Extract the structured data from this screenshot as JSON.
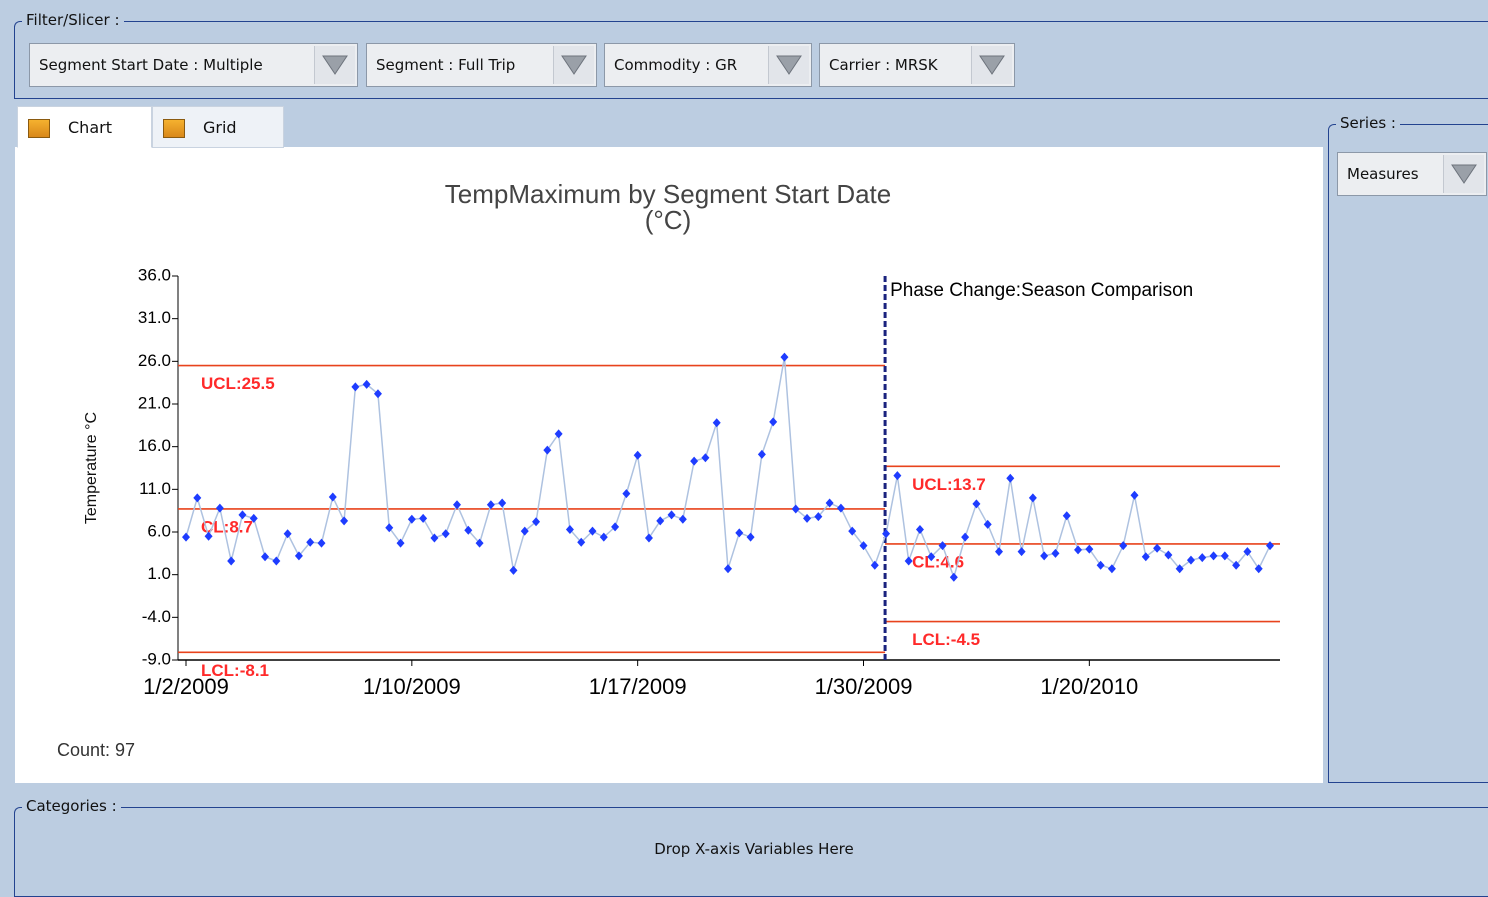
{
  "ui": {
    "filter_title": "Filter/Slicer :",
    "filters": [
      "Segment Start Date : Multiple",
      "Segment : Full Trip",
      "Commodity : GR",
      "Carrier : MRSK"
    ],
    "tabs": [
      "Chart",
      "Grid"
    ],
    "series_title": "Series :",
    "series_item": "Measures",
    "categories_title": "Categories :",
    "categories_hint": "Drop X-axis Variables Here"
  },
  "chart_data": {
    "type": "line",
    "title": "TempMaximum by Segment Start Date",
    "subtitle": "(°C)",
    "y_label": "Temperature °C",
    "categories": [
      "1/2/2009",
      null,
      null,
      null,
      null,
      null,
      null,
      null,
      null,
      null,
      null,
      null,
      null,
      null,
      null,
      null,
      null,
      null,
      null,
      null,
      "1/10/2009",
      null,
      null,
      null,
      null,
      null,
      null,
      null,
      null,
      null,
      null,
      null,
      null,
      null,
      null,
      null,
      null,
      null,
      null,
      null,
      "1/17/2009",
      null,
      null,
      null,
      null,
      null,
      null,
      null,
      null,
      null,
      null,
      null,
      null,
      null,
      null,
      null,
      null,
      null,
      null,
      null,
      "1/30/2009",
      null,
      null,
      null,
      null,
      null,
      null,
      null,
      null,
      null,
      null,
      null,
      null,
      null,
      null,
      null,
      null,
      null,
      null,
      null,
      "1/20/2010",
      null,
      null,
      null,
      null,
      null,
      null,
      null,
      null,
      null,
      null,
      null,
      null,
      null,
      null,
      null,
      null
    ],
    "values": [
      5.4,
      10.0,
      5.5,
      8.8,
      2.6,
      8.0,
      7.6,
      3.1,
      2.6,
      5.8,
      3.2,
      4.8,
      4.7,
      10.1,
      7.3,
      23.0,
      23.3,
      22.2,
      6.5,
      4.7,
      7.5,
      7.6,
      5.3,
      5.8,
      9.2,
      6.2,
      4.7,
      9.2,
      9.4,
      1.5,
      6.1,
      7.2,
      15.6,
      17.5,
      6.3,
      4.8,
      6.1,
      5.4,
      6.6,
      10.5,
      15.0,
      5.3,
      7.3,
      8.0,
      7.5,
      14.3,
      14.7,
      18.8,
      1.7,
      5.9,
      5.4,
      15.1,
      18.9,
      26.5,
      8.7,
      7.6,
      7.8,
      9.4,
      8.8,
      6.1,
      4.4,
      2.1,
      5.8,
      12.6,
      2.6,
      6.3,
      3.1,
      4.4,
      0.7,
      5.4,
      9.3,
      6.9,
      3.7,
      12.3,
      3.7,
      10.0,
      3.2,
      3.5,
      7.9,
      3.9,
      4.0,
      2.1,
      1.7,
      4.4,
      10.3,
      3.1,
      4.1,
      3.3,
      1.7,
      2.7,
      3.0,
      3.2,
      3.2,
      2.1,
      3.7,
      1.7,
      4.4
    ],
    "color": "#1e3cff",
    "line_color": "#aec2e0",
    "limit_color": "#e8431c",
    "limit_label_color": "#ff2a2a",
    "ylim": [
      -9,
      36
    ],
    "yticks": [
      {
        "value": 36,
        "label": "36.0"
      },
      {
        "value": 31,
        "label": "31.0"
      },
      {
        "value": 26,
        "label": "26.0"
      },
      {
        "value": 21,
        "label": "21.0"
      },
      {
        "value": 16,
        "label": "16.0"
      },
      {
        "value": 11,
        "label": "11.0"
      },
      {
        "value": 6,
        "label": "6.0"
      },
      {
        "value": 1,
        "label": "1.0"
      },
      {
        "value": -4,
        "label": "-4.0"
      },
      {
        "value": -9,
        "label": "-9.0"
      }
    ],
    "phases": [
      {
        "start": 0,
        "ucl": 25.5,
        "cl": 8.7,
        "lcl": -8.1,
        "ucl_label": "UCL:25.5",
        "cl_label": "CL:8.7",
        "lcl_label": "LCL:-8.1"
      },
      {
        "start": 62,
        "ucl": 13.7,
        "cl": 4.6,
        "lcl": -4.5,
        "ucl_label": "UCL:13.7",
        "cl_label": "CL:4.6",
        "lcl_label": "LCL:-4.5"
      }
    ],
    "phase_annotation": "Phase Change:Season Comparison",
    "footer": "Count: 97"
  }
}
